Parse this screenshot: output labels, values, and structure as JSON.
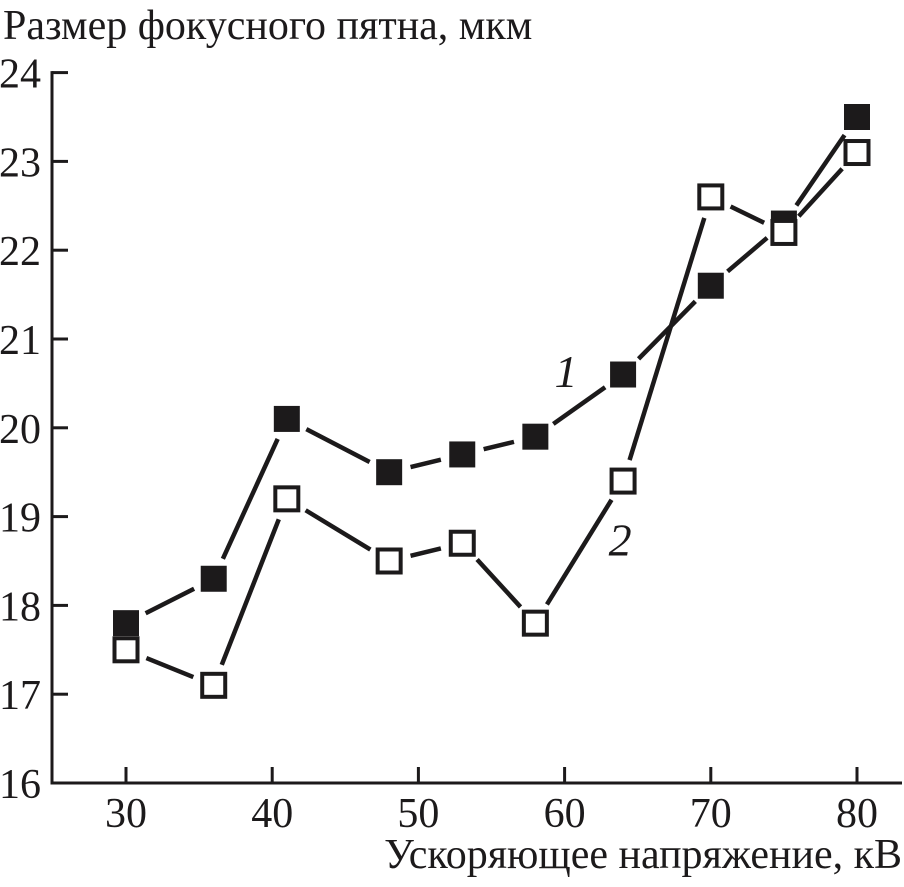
{
  "chart_data": {
    "type": "line",
    "title": "Размер фокусного пятна, мкм",
    "xlabel": "Ускоряющее напряжение, кВ",
    "ylabel": "",
    "xlim": [
      25,
      83
    ],
    "ylim": [
      16,
      24
    ],
    "x_ticks": [
      30,
      40,
      50,
      60,
      70,
      80
    ],
    "y_ticks": [
      16,
      17,
      18,
      19,
      20,
      21,
      22,
      23,
      24
    ],
    "grid": false,
    "legend_position": "inline-annotations",
    "ink_color": "#1c1a1b",
    "background_color": "#ffffff",
    "x": [
      30,
      36,
      41,
      48,
      53,
      58,
      64,
      70,
      75,
      80
    ],
    "series": [
      {
        "name": "1",
        "marker": "filled-square",
        "values": [
          17.8,
          18.3,
          20.1,
          19.5,
          19.7,
          19.9,
          20.6,
          21.6,
          22.3,
          23.5
        ],
        "label_pos": {
          "x": 60.1,
          "y": 20.64
        }
      },
      {
        "name": "2",
        "marker": "open-square",
        "values": [
          17.5,
          17.1,
          19.2,
          18.5,
          18.7,
          17.8,
          19.4,
          22.6,
          22.2,
          23.1
        ],
        "label_pos": {
          "x": 63.8,
          "y": 18.74
        }
      }
    ]
  }
}
